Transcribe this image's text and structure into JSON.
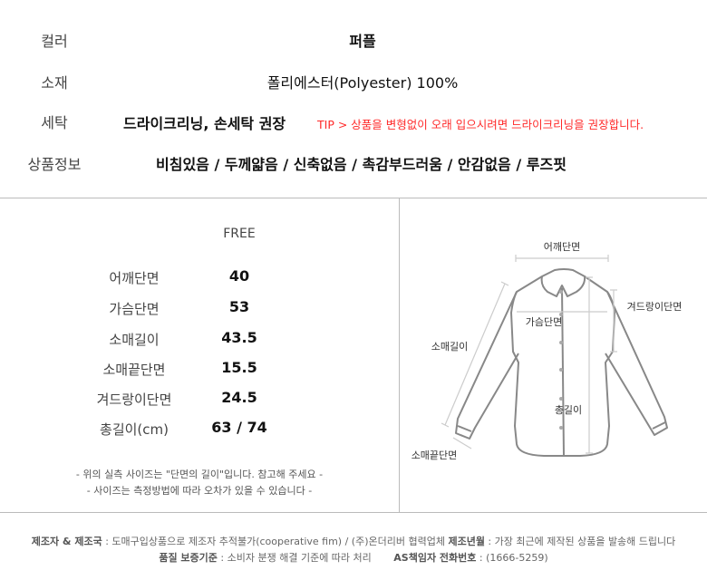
{
  "info": {
    "rows": [
      {
        "label": "컬러",
        "value": "퍼플"
      },
      {
        "label": "소재",
        "value": "폴리에스터(Polyester) 100%"
      },
      {
        "label": "세탁",
        "value": "드라이크리닝, 손세탁 권장",
        "tip": "TIP > 상품을 변형없이 오래 입으시려면 드라이크리닝을 권장합니다."
      },
      {
        "label": "상품정보",
        "value": "비침있음 / 두께얇음 / 신축없음 / 촉감부드러움 / 안감없음 / 루즈핏"
      }
    ],
    "tip_color": "#ff2a2a"
  },
  "size": {
    "header": "FREE",
    "rows": [
      {
        "label": "어깨단면",
        "value": "40"
      },
      {
        "label": "가슴단면",
        "value": "53"
      },
      {
        "label": "소매길이",
        "value": "43.5"
      },
      {
        "label": "소매끝단면",
        "value": "15.5"
      },
      {
        "label": "겨드랑이단면",
        "value": "24.5"
      },
      {
        "label": "총길이(cm)",
        "value": "63 / 74"
      }
    ],
    "notes": [
      "- 위의 실측 사이즈는 \"단면의 길이\"입니다. 참고해 주세요 -",
      "- 사이즈는 측정방법에 따라 오차가 있을 수 있습니다 -"
    ]
  },
  "diagram": {
    "shoulder": "어깨단면",
    "chest": "가슴단면",
    "armpit": "겨드랑이단면",
    "sleeve": "소매길이",
    "length": "총길이",
    "cuff": "소매끝단면"
  },
  "footer": {
    "maker_label": "제조자 & 제조국",
    "maker_value": " : 도매구입상품으로 제조자 추적불가(cooperative fim) / (주)온더리버 협력업체 ",
    "date_label": "제조년월",
    "date_value": " : 가장 최근에 제작된 상품을 발송해 드립니다",
    "quality_label": "품질 보증기준",
    "quality_value": " : 소비자 분쟁 해결 기준에 따라 처리",
    "as_label": "AS책임자 전화번호",
    "as_value": " : (1666-5259)"
  }
}
